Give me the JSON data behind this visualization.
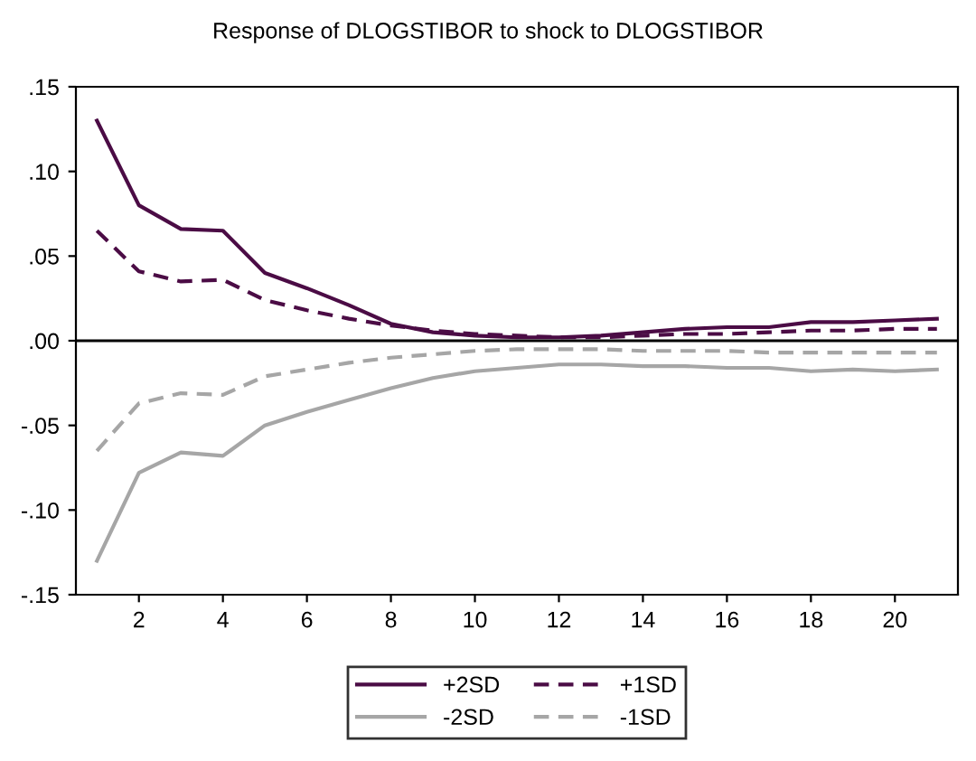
{
  "chart_data": {
    "type": "line",
    "title": "Response of DLOGSTIBOR to shock to DLOGSTIBOR",
    "x": [
      1,
      2,
      3,
      4,
      5,
      6,
      7,
      8,
      9,
      10,
      11,
      12,
      13,
      14,
      15,
      16,
      17,
      18,
      19,
      20,
      21
    ],
    "series": [
      {
        "name": "+2SD",
        "color": "#4b0c45",
        "line_style": "solid",
        "values": [
          0.13,
          0.08,
          0.066,
          0.065,
          0.04,
          0.031,
          0.021,
          0.01,
          0.005,
          0.003,
          0.002,
          0.002,
          0.003,
          0.005,
          0.007,
          0.008,
          0.008,
          0.011,
          0.011,
          0.012,
          0.013
        ]
      },
      {
        "name": "-2SD",
        "color": "#a6a6a6",
        "line_style": "solid",
        "values": [
          -0.13,
          -0.078,
          -0.066,
          -0.068,
          -0.05,
          -0.042,
          -0.035,
          -0.028,
          -0.022,
          -0.018,
          -0.016,
          -0.014,
          -0.014,
          -0.015,
          -0.015,
          -0.016,
          -0.016,
          -0.018,
          -0.017,
          -0.018,
          -0.017
        ]
      },
      {
        "name": "+1SD",
        "color": "#4b0c45",
        "line_style": "dashed",
        "values": [
          0.065,
          0.041,
          0.035,
          0.036,
          0.024,
          0.018,
          0.013,
          0.009,
          0.006,
          0.004,
          0.003,
          0.002,
          0.002,
          0.003,
          0.004,
          0.004,
          0.005,
          0.006,
          0.006,
          0.007,
          0.007
        ]
      },
      {
        "name": "-1SD",
        "color": "#a6a6a6",
        "line_style": "dashed",
        "values": [
          -0.065,
          -0.037,
          -0.031,
          -0.032,
          -0.021,
          -0.017,
          -0.013,
          -0.01,
          -0.008,
          -0.006,
          -0.005,
          -0.005,
          -0.005,
          -0.006,
          -0.006,
          -0.006,
          -0.007,
          -0.007,
          -0.007,
          -0.007,
          -0.007
        ]
      }
    ],
    "xlim": [
      0.5,
      21.5
    ],
    "xticks": [
      2,
      4,
      6,
      8,
      10,
      12,
      14,
      16,
      18,
      20
    ],
    "ylim": [
      -0.15,
      0.15
    ],
    "yticks": [
      {
        "value": -0.15,
        "label": "-.15"
      },
      {
        "value": -0.1,
        "label": "-.10"
      },
      {
        "value": -0.05,
        "label": "-.05"
      },
      {
        "value": 0.0,
        "label": ".00"
      },
      {
        "value": 0.05,
        "label": ".05"
      },
      {
        "value": 0.1,
        "label": ".10"
      },
      {
        "value": 0.15,
        "label": ".15"
      }
    ],
    "ref_lines": [
      {
        "axis": "y",
        "value": 0,
        "color": "#000000"
      }
    ],
    "grid": false,
    "legend": "bottom",
    "marker": "none"
  }
}
